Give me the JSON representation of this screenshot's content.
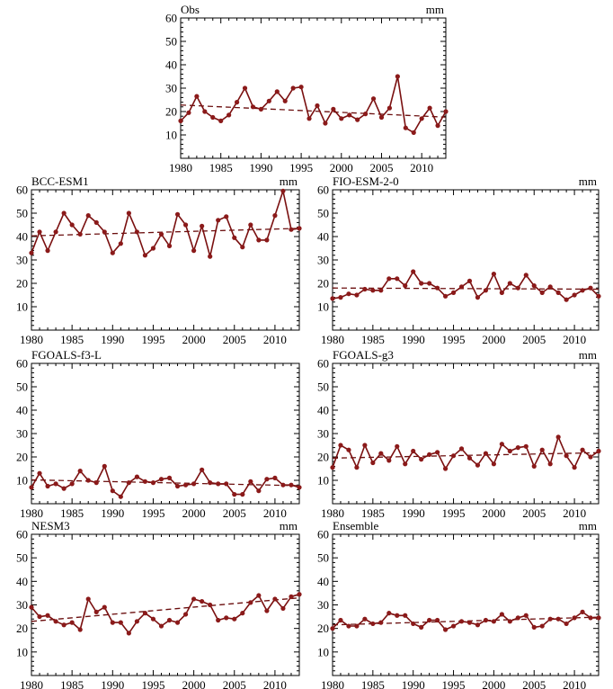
{
  "chart_data": [
    {
      "type": "line",
      "title": "Obs",
      "unit": "mm",
      "x": [
        1980,
        1981,
        1982,
        1983,
        1984,
        1985,
        1986,
        1987,
        1988,
        1989,
        1990,
        1991,
        1992,
        1993,
        1994,
        1995,
        1996,
        1997,
        1998,
        1999,
        2000,
        2001,
        2002,
        2003,
        2004,
        2005,
        2006,
        2007,
        2008,
        2009,
        2010,
        2011,
        2012,
        2013
      ],
      "values": [
        16,
        19.5,
        26.5,
        20,
        17.5,
        16,
        18.5,
        24,
        30,
        22,
        21,
        24.5,
        28.5,
        24.5,
        30,
        30.5,
        17,
        22.5,
        15,
        21,
        17,
        18.5,
        16.5,
        19,
        25.5,
        17.5,
        21.5,
        35,
        13,
        11,
        17,
        21.5,
        14,
        20
      ],
      "trend": [
        22.8,
        17.6
      ],
      "xlim": [
        1980,
        2013
      ],
      "ylim": [
        0,
        60
      ],
      "xticks": [
        "1980",
        "1985",
        "1990",
        "1995",
        "2000",
        "2005",
        "2010"
      ],
      "yticks": [
        "10",
        "20",
        "30",
        "40",
        "50",
        "60"
      ]
    },
    {
      "type": "line",
      "title": "BCC-ESM1",
      "unit": "mm",
      "x": [
        1980,
        1981,
        1982,
        1983,
        1984,
        1985,
        1986,
        1987,
        1988,
        1989,
        1990,
        1991,
        1992,
        1993,
        1994,
        1995,
        1996,
        1997,
        1998,
        1999,
        2000,
        2001,
        2002,
        2003,
        2004,
        2005,
        2006,
        2007,
        2008,
        2009,
        2010,
        2011,
        2012,
        2013
      ],
      "values": [
        33,
        42,
        34,
        42,
        50,
        45,
        41,
        49,
        46,
        42,
        33,
        37,
        50,
        42,
        32,
        35,
        41,
        36,
        49.5,
        45,
        34,
        44.5,
        31.5,
        47,
        48.5,
        39.5,
        35.5,
        45,
        38.5,
        38.5,
        49,
        59.5,
        43,
        43.5
      ],
      "trend": [
        40.3,
        43.5
      ],
      "xlim": [
        1980,
        2013
      ],
      "ylim": [
        0,
        60
      ],
      "xticks": [
        "1980",
        "1985",
        "1990",
        "1995",
        "2000",
        "2005",
        "2010"
      ],
      "yticks": [
        "10",
        "20",
        "30",
        "40",
        "50",
        "60"
      ]
    },
    {
      "type": "line",
      "title": "FIO-ESM-2-0",
      "unit": "mm",
      "x": [
        1980,
        1981,
        1982,
        1983,
        1984,
        1985,
        1986,
        1987,
        1988,
        1989,
        1990,
        1991,
        1992,
        1993,
        1994,
        1995,
        1996,
        1997,
        1998,
        1999,
        2000,
        2001,
        2002,
        2003,
        2004,
        2005,
        2006,
        2007,
        2008,
        2009,
        2010,
        2011,
        2012,
        2013
      ],
      "values": [
        13.5,
        14,
        15.5,
        15,
        17.5,
        17,
        17,
        22,
        22,
        19,
        25,
        20,
        20,
        18,
        14.5,
        16,
        18.5,
        21,
        14,
        17,
        24,
        16,
        20,
        18,
        23.5,
        19,
        16,
        18.5,
        16,
        13,
        15,
        17,
        18,
        14.5
      ],
      "trend": [
        18,
        17.5
      ],
      "xlim": [
        1980,
        2013
      ],
      "ylim": [
        0,
        60
      ],
      "xticks": [
        "1980",
        "1985",
        "1990",
        "1995",
        "2000",
        "2005",
        "2010"
      ],
      "yticks": [
        "10",
        "20",
        "30",
        "40",
        "50",
        "60"
      ]
    },
    {
      "type": "line",
      "title": "FGOALS-f3-L",
      "unit": "",
      "x": [
        1980,
        1981,
        1982,
        1983,
        1984,
        1985,
        1986,
        1987,
        1988,
        1989,
        1990,
        1991,
        1992,
        1993,
        1994,
        1995,
        1996,
        1997,
        1998,
        1999,
        2000,
        2001,
        2002,
        2003,
        2004,
        2005,
        2006,
        2007,
        2008,
        2009,
        2010,
        2011,
        2012,
        2013
      ],
      "values": [
        7,
        13,
        7.5,
        8.5,
        6.5,
        8.5,
        14,
        10,
        9,
        16,
        5.5,
        3,
        9,
        11.5,
        9.5,
        9,
        10.5,
        11,
        7.5,
        8,
        8.5,
        14.5,
        9,
        8.5,
        8.5,
        4,
        4,
        9.5,
        5.5,
        10.5,
        11,
        8,
        8,
        7
      ],
      "trend": [
        10.2,
        7.7
      ],
      "xlim": [
        1980,
        2013
      ],
      "ylim": [
        0,
        60
      ],
      "xticks": [
        "1980",
        "1985",
        "1990",
        "1995",
        "2000",
        "2005",
        "2010"
      ],
      "yticks": [
        "10",
        "20",
        "30",
        "40",
        "50",
        "60"
      ]
    },
    {
      "type": "line",
      "title": "FGOALS-g3",
      "unit": "mm",
      "x": [
        1980,
        1981,
        1982,
        1983,
        1984,
        1985,
        1986,
        1987,
        1988,
        1989,
        1990,
        1991,
        1992,
        1993,
        1994,
        1995,
        1996,
        1997,
        1998,
        1999,
        2000,
        2001,
        2002,
        2003,
        2004,
        2005,
        2006,
        2007,
        2008,
        2009,
        2010,
        2011,
        2012,
        2013
      ],
      "values": [
        15.5,
        25,
        23,
        15.5,
        25,
        17.5,
        21.5,
        18.5,
        24.5,
        17,
        22.5,
        19,
        21,
        22,
        15,
        20.5,
        23.5,
        19.5,
        16.5,
        21.5,
        17,
        25.5,
        22.5,
        24,
        24.5,
        16,
        23,
        17,
        28.5,
        20.5,
        15.5,
        23,
        20,
        22.5
      ],
      "trend": [
        19.5,
        21.8
      ],
      "xlim": [
        1980,
        2013
      ],
      "ylim": [
        0,
        60
      ],
      "xticks": [
        "1980",
        "1985",
        "1990",
        "1995",
        "2000",
        "2005",
        "2010"
      ],
      "yticks": [
        "10",
        "20",
        "30",
        "40",
        "50",
        "60"
      ]
    },
    {
      "type": "line",
      "title": "NESM3",
      "unit": "mm",
      "x": [
        1980,
        1981,
        1982,
        1983,
        1984,
        1985,
        1986,
        1987,
        1988,
        1989,
        1990,
        1991,
        1992,
        1993,
        1994,
        1995,
        1996,
        1997,
        1998,
        1999,
        2000,
        2001,
        2002,
        2003,
        2004,
        2005,
        2006,
        2007,
        2008,
        2009,
        2010,
        2011,
        2012,
        2013
      ],
      "values": [
        29,
        25,
        25.5,
        23,
        21.5,
        22.5,
        19.5,
        32.5,
        27,
        29,
        22.5,
        22.5,
        18,
        23,
        26.5,
        24,
        21,
        23.5,
        22.5,
        26,
        32.5,
        31.5,
        30,
        23.5,
        24.5,
        24,
        26.5,
        31,
        34,
        27.5,
        32.5,
        28.5,
        33.5,
        34.5
      ],
      "trend": [
        23,
        33
      ],
      "xlim": [
        1980,
        2013
      ],
      "ylim": [
        0,
        60
      ],
      "xticks": [
        "1980",
        "1985",
        "1990",
        "1995",
        "2000",
        "2005",
        "2010"
      ],
      "yticks": [
        "10",
        "20",
        "30",
        "40",
        "50",
        "60"
      ]
    },
    {
      "type": "line",
      "title": "Ensemble",
      "unit": "mm",
      "x": [
        1980,
        1981,
        1982,
        1983,
        1984,
        1985,
        1986,
        1987,
        1988,
        1989,
        1990,
        1991,
        1992,
        1993,
        1994,
        1995,
        1996,
        1997,
        1998,
        1999,
        2000,
        2001,
        2002,
        2003,
        2004,
        2005,
        2006,
        2007,
        2008,
        2009,
        2010,
        2011,
        2012,
        2013
      ],
      "values": [
        20,
        23.5,
        21,
        21,
        24,
        22,
        22.5,
        26.5,
        25.5,
        25.5,
        22,
        20.5,
        23.5,
        23.5,
        19.5,
        21,
        23,
        22.5,
        21.5,
        23.5,
        23,
        26,
        23,
        24.5,
        25.5,
        20.5,
        21,
        24,
        24,
        22,
        24.5,
        27,
        24.5,
        24.5
      ],
      "trend": [
        21.5,
        24.8
      ],
      "xlim": [
        1980,
        2013
      ],
      "ylim": [
        0,
        60
      ],
      "xticks": [
        "1980",
        "1985",
        "1990",
        "1995",
        "2000",
        "2005",
        "2010"
      ],
      "yticks": [
        "10",
        "20",
        "30",
        "40",
        "50",
        "60"
      ]
    }
  ],
  "style": {
    "line_color": "#7a1010",
    "marker_color": "#8b1a1a",
    "trend_color": "#6b0f0f",
    "axis_color": "#000000"
  }
}
